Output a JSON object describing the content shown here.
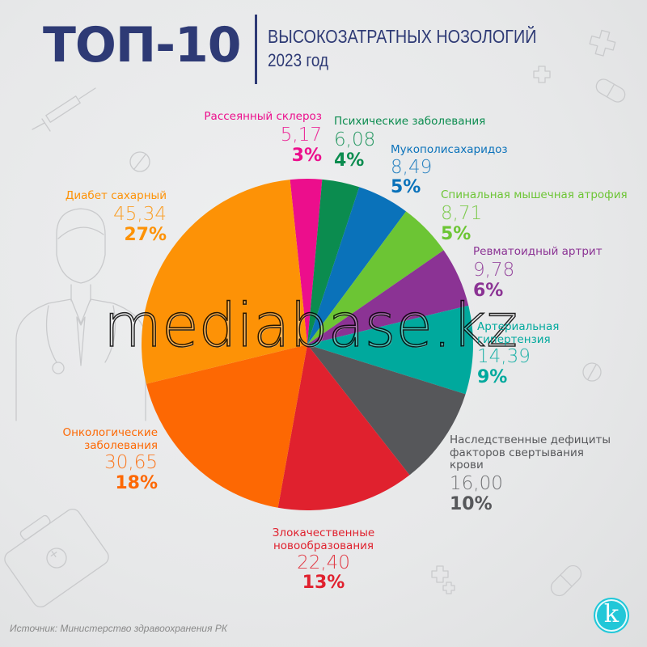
{
  "header": {
    "title": "ТОП-10",
    "subtitle": "ВЫСОКОЗАТРАТНЫХ НОЗОЛОГИЙ",
    "year": "2023 год"
  },
  "watermark": "mediabase.kz",
  "footer": {
    "source": "Источник: Министерство здравоохранения РК",
    "logo_letter": "k"
  },
  "colors": {
    "title": "#2e3a75",
    "logo": "#22c7d8"
  },
  "chart_data": {
    "type": "pie",
    "title": "ТОП-10 ВЫСОКОЗАТРАТНЫХ НОЗОЛОГИЙ 2023 год",
    "start_angle_deg": -6,
    "direction": "clockwise",
    "categories": [
      "Рассеянный склероз",
      "Психические заболевания",
      "Мукополисахаридоз",
      "Спинальная мышечная атрофия",
      "Ревматоидный артрит",
      "Артериальная гипертензия",
      "Наследственные дефициты факторов свертывания крови",
      "Злокачественные новообразования",
      "Онкологические заболевания",
      "Диабет сахарный"
    ],
    "values": [
      5.17,
      6.08,
      8.49,
      8.71,
      9.78,
      14.39,
      16.0,
      22.4,
      30.65,
      45.34
    ],
    "value_labels": [
      "5,17",
      "6,08",
      "8,49",
      "8,71",
      "9,78",
      "14,39",
      "16,00",
      "22,40",
      "30,65",
      "45,34"
    ],
    "percent_labels": [
      "3%",
      "4%",
      "5%",
      "5%",
      "6%",
      "9%",
      "10%",
      "13%",
      "18%",
      "27%"
    ],
    "colors": [
      "#ec0e8c",
      "#0b8c4f",
      "#0a72ba",
      "#6cc534",
      "#8b3394",
      "#00a99d",
      "#56575a",
      "#e0212e",
      "#fd6803",
      "#fd9206"
    ],
    "legend": "none (direct labels)"
  },
  "labels": [
    {
      "name": "Рассеянный склероз",
      "value": "5,17",
      "pct": "3%",
      "color": "#ec0e8c"
    },
    {
      "name": "Психические заболевания",
      "value": "6,08",
      "pct": "4%",
      "color": "#0b8c4f"
    },
    {
      "name": "Мукополисахаридоз",
      "value": "8,49",
      "pct": "5%",
      "color": "#0a72ba"
    },
    {
      "name": "Спинальная мышечная атрофия",
      "value": "8,71",
      "pct": "5%",
      "color": "#6cc534"
    },
    {
      "name": "Ревматоидный артрит",
      "value": "9,78",
      "pct": "6%",
      "color": "#8b3394"
    },
    {
      "name_lines": [
        "Артериальная",
        "гипертензия"
      ],
      "value": "14,39",
      "pct": "9%",
      "color": "#00a99d"
    },
    {
      "name_lines": [
        "Наследственные дефициты",
        "факторов свертывания",
        "крови"
      ],
      "value": "16,00",
      "pct": "10%",
      "color": "#56575a"
    },
    {
      "name_lines": [
        "Злокачественные",
        "новообразования"
      ],
      "value": "22,40",
      "pct": "13%",
      "color": "#e0212e"
    },
    {
      "name_lines": [
        "Онкологические",
        "заболевания"
      ],
      "value": "30,65",
      "pct": "18%",
      "color": "#fd6803"
    },
    {
      "name": "Диабет сахарный",
      "value": "45,34",
      "pct": "27%",
      "color": "#fd9206"
    }
  ]
}
